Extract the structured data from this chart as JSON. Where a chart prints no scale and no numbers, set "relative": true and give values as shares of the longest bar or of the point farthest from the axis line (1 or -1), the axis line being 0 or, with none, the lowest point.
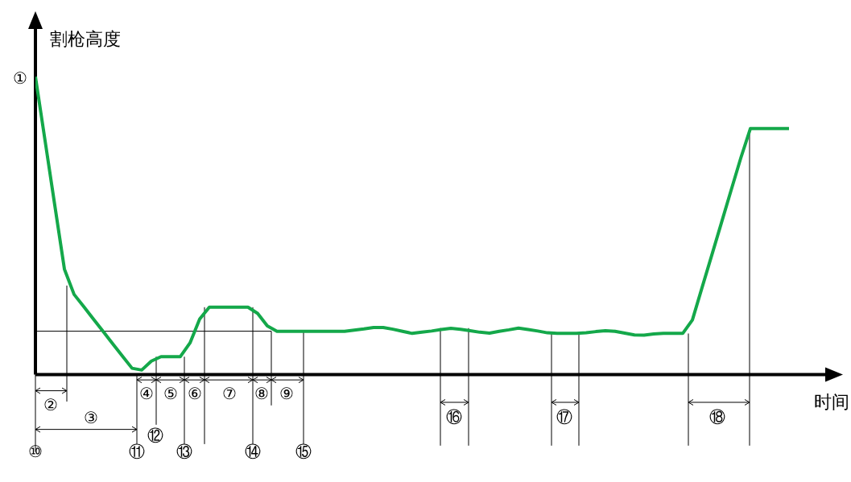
{
  "chart_data": {
    "type": "line",
    "relative": true,
    "xlabel": "时间",
    "ylabel": "割枪高度",
    "categories": [
      null,
      null,
      null,
      null,
      null,
      null,
      null,
      null,
      null,
      null,
      null,
      null,
      null,
      null,
      null,
      null,
      null,
      null,
      null,
      null,
      null,
      null,
      null,
      null,
      null,
      null,
      null,
      null,
      null,
      null,
      null,
      null,
      null,
      null,
      null,
      null,
      null,
      null,
      null,
      null,
      null,
      null,
      null,
      null,
      null,
      null,
      null,
      null,
      null,
      null,
      null,
      null,
      null,
      null,
      null,
      null,
      null,
      null,
      null,
      null,
      null,
      null,
      null,
      null,
      null,
      null,
      null,
      null,
      null,
      null,
      null,
      null,
      null,
      null,
      null,
      null,
      null,
      null,
      null
    ],
    "series": [
      {
        "color": "#14a84a",
        "values": [
          1.0,
          0.785,
          0.569,
          0.354,
          0.269,
          0.228,
          0.186,
          0.145,
          0.103,
          0.062,
          0.021,
          0.015,
          0.045,
          0.06,
          0.06,
          0.06,
          0.106,
          0.186,
          0.226,
          0.226,
          0.226,
          0.226,
          0.226,
          0.205,
          0.163,
          0.145,
          0.145,
          0.145,
          0.145,
          0.145,
          0.145,
          0.145,
          0.145,
          0.149,
          0.153,
          0.158,
          0.158,
          0.152,
          0.145,
          0.138,
          0.142,
          0.146,
          0.151,
          0.155,
          0.152,
          0.147,
          0.142,
          0.139,
          0.145,
          0.15,
          0.156,
          0.151,
          0.146,
          0.14,
          0.138,
          0.138,
          0.138,
          0.14,
          0.144,
          0.147,
          0.145,
          0.139,
          0.133,
          0.132,
          0.136,
          0.138,
          0.138,
          0.138,
          0.183,
          0.292,
          0.4,
          0.509,
          0.618,
          0.726,
          0.826,
          0.826,
          0.826,
          0.826,
          0.826
        ]
      }
    ],
    "annotations": [
      "①",
      "②",
      "③",
      "④",
      "⑤",
      "⑥",
      "⑦",
      "⑧",
      "⑨",
      "⑩",
      "⑪",
      "⑫",
      "⑬",
      "⑭",
      "⑮",
      "⑯",
      "⑰",
      "⑱"
    ]
  }
}
